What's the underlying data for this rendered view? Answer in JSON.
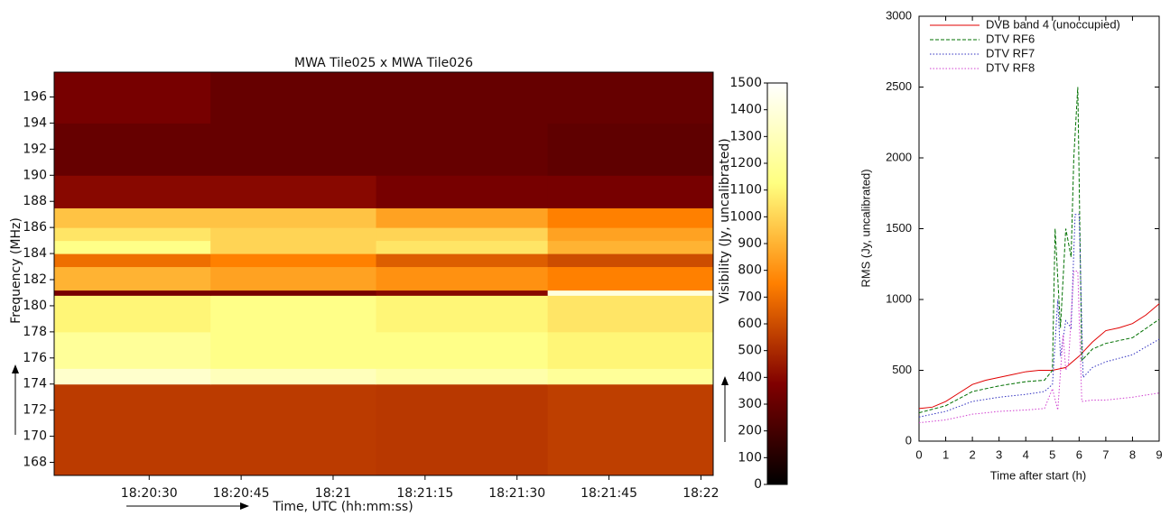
{
  "chart_data": [
    {
      "type": "heatmap",
      "title": "MWA Tile025 x MWA Tile026",
      "x_label": "Time, UTC (hh:mm:ss)",
      "y_label": "Frequency (MHz)",
      "colorbar_label": "Visibility (Jy, uncalibrated)",
      "colormap": "afmhot",
      "xlim": [
        14.5,
        122
      ],
      "ylim": [
        167,
        197.9
      ],
      "clim": [
        0,
        1500
      ],
      "xticks": [
        {
          "value": 30,
          "label": "18:20:30"
        },
        {
          "value": 45,
          "label": "18:20:45"
        },
        {
          "value": 60,
          "label": "18:21"
        },
        {
          "value": 75,
          "label": "18:21:15"
        },
        {
          "value": 90,
          "label": "18:21:30"
        },
        {
          "value": 105,
          "label": "18:21:45"
        },
        {
          "value": 120,
          "label": "18:22"
        }
      ],
      "yticks": [
        168,
        170,
        172,
        174,
        176,
        178,
        180,
        182,
        184,
        186,
        188,
        190,
        192,
        194,
        196
      ],
      "cticks": [
        0,
        100,
        200,
        300,
        400,
        500,
        600,
        700,
        800,
        900,
        1000,
        1100,
        1200,
        1300,
        1400,
        1500
      ],
      "x_edges": [
        14.5,
        40,
        67,
        95,
        122
      ],
      "y_edges": [
        167,
        174,
        175.2,
        178,
        180.8,
        181.2,
        183,
        184,
        185,
        186,
        187.5,
        190,
        194,
        197.9
      ],
      "z": [
        [
          550,
          550,
          540,
          560
        ],
        [
          1350,
          1300,
          1250,
          1200
        ],
        [
          1200,
          1150,
          1150,
          1100
        ],
        [
          1100,
          1150,
          1100,
          1050
        ],
        [
          350,
          350,
          400,
          1400
        ],
        [
          900,
          850,
          800,
          750
        ],
        [
          700,
          750,
          650,
          600
        ],
        [
          1150,
          1000,
          1050,
          900
        ],
        [
          1050,
          1000,
          1000,
          850
        ],
        [
          950,
          950,
          850,
          750
        ],
        [
          400,
          400,
          350,
          350
        ],
        [
          300,
          300,
          300,
          280
        ],
        [
          350,
          300,
          300,
          300
        ]
      ]
    },
    {
      "type": "line",
      "x_label": "Time after start (h)",
      "y_label": "RMS (Jy, uncalibrated)",
      "xlim": [
        0,
        9
      ],
      "ylim": [
        0,
        3000
      ],
      "xticks": [
        0,
        1,
        2,
        3,
        4,
        5,
        6,
        7,
        8,
        9
      ],
      "yticks": [
        0,
        500,
        1000,
        1500,
        2000,
        2500,
        3000
      ],
      "legend": "upper left",
      "series": [
        {
          "name": "DVB band 4 (unoccupied)",
          "color": "#e00000",
          "linestyle": "solid",
          "x": [
            0,
            0.5,
            1,
            1.5,
            2,
            2.5,
            3,
            3.5,
            4,
            4.5,
            5,
            5.5,
            6,
            6.5,
            7,
            7.5,
            8,
            8.5,
            9
          ],
          "values": [
            230,
            240,
            280,
            340,
            400,
            430,
            450,
            470,
            490,
            500,
            500,
            520,
            600,
            700,
            780,
            800,
            830,
            890,
            970
          ]
        },
        {
          "name": "DTV RF6",
          "color": "#007000",
          "linestyle": "dashed",
          "x": [
            0,
            1,
            2,
            3,
            4,
            4.7,
            5,
            5.1,
            5.3,
            5.5,
            5.7,
            5.8,
            5.95,
            6.1,
            6.5,
            7,
            8,
            9
          ],
          "values": [
            200,
            250,
            350,
            390,
            420,
            430,
            500,
            1500,
            800,
            1500,
            1300,
            2000,
            2500,
            570,
            650,
            690,
            730,
            860
          ]
        },
        {
          "name": "DTV RF7",
          "color": "#3030c0",
          "linestyle": "dotted",
          "x": [
            0,
            1,
            2,
            3,
            4,
            4.7,
            5,
            5.2,
            5.3,
            5.5,
            5.7,
            5.85,
            6,
            6.15,
            6.5,
            7,
            8,
            9
          ],
          "values": [
            170,
            210,
            280,
            310,
            330,
            350,
            400,
            1000,
            600,
            850,
            800,
            1600,
            1600,
            450,
            520,
            560,
            610,
            720
          ]
        },
        {
          "name": "DTV RF8",
          "color": "#d040d0",
          "linestyle": "dotted",
          "x": [
            0,
            1,
            2,
            3,
            4,
            4.7,
            5,
            5.2,
            5.4,
            5.5,
            5.6,
            5.8,
            5.95,
            6.1,
            6.5,
            7,
            8,
            9
          ],
          "values": [
            130,
            150,
            190,
            210,
            220,
            230,
            370,
            220,
            750,
            500,
            550,
            1200,
            1200,
            280,
            290,
            290,
            310,
            340
          ]
        }
      ]
    }
  ]
}
